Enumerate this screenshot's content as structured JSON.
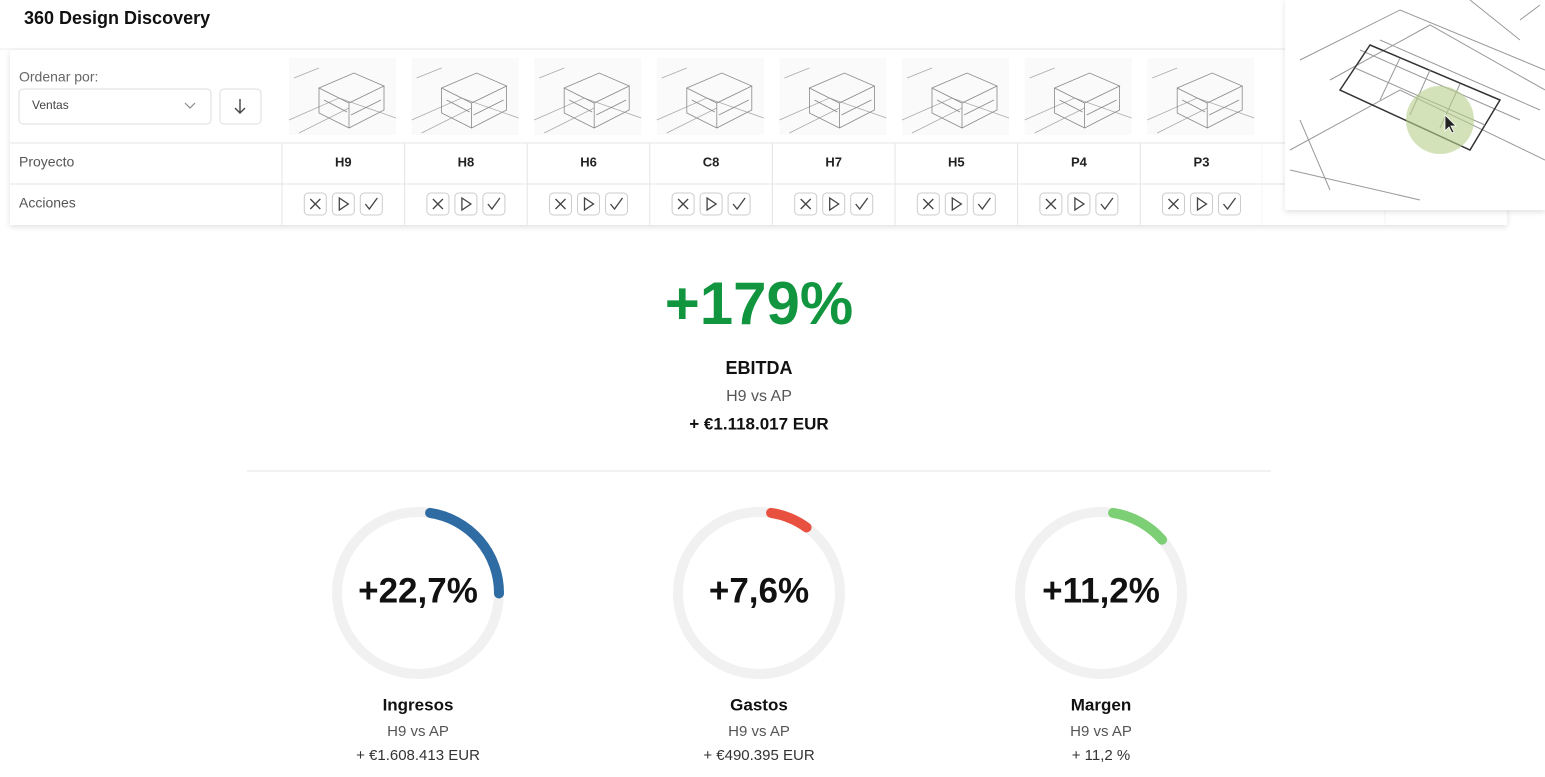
{
  "header": {
    "title": "360 Design Discovery"
  },
  "toolbar": {
    "sort_label": "Ordenar por:",
    "sort_value": "Ventas"
  },
  "table": {
    "row_labels": [
      "Proyecto",
      "Acciones"
    ],
    "projects": [
      "H9",
      "H8",
      "H6",
      "C8",
      "H7",
      "H5",
      "P4",
      "P3"
    ]
  },
  "ebitda": {
    "value": "+179%",
    "label": "EBITDA",
    "comparison": "H9 vs AP",
    "amount": "+ €1.118.017 EUR"
  },
  "gauges": [
    {
      "value": 22.7,
      "label": "+22,7%",
      "name": "Ingresos",
      "comparison": "H9 vs AP",
      "amount": "+ €1.608.413 EUR",
      "color": "#2f6ca3"
    },
    {
      "value": 7.6,
      "label": "+7,6%",
      "name": "Gastos",
      "comparison": "H9 vs AP",
      "amount": "+ €490.395 EUR",
      "color": "#e8503f"
    },
    {
      "value": 11.2,
      "label": "+11,2%",
      "name": "Margen",
      "comparison": "H9 vs AP",
      "amount": "+ 11,2 %",
      "color": "#7ccf74"
    }
  ]
}
